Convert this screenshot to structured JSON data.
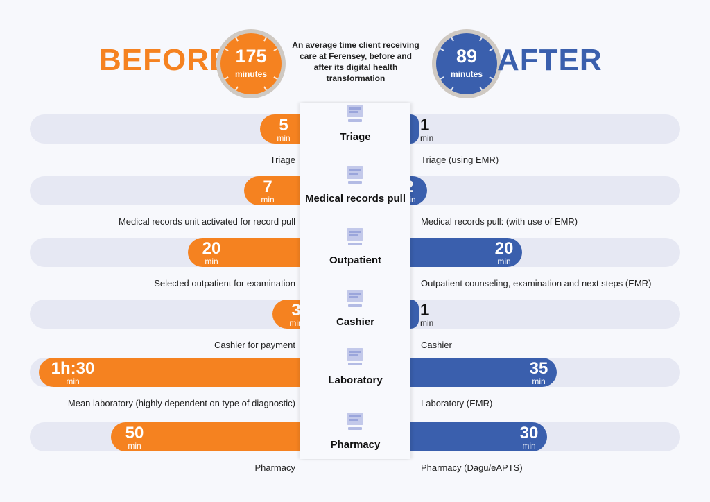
{
  "header": {
    "before_label": "BEFORE",
    "after_label": "AFTER",
    "before_total": "175",
    "after_total": "89",
    "total_unit": "minutes",
    "subtitle": "An average time client receiving care at Ferensey, before and after its digital health transformation"
  },
  "colors": {
    "before": "#f58220",
    "after": "#3a5fad",
    "track": "#e6e8f3"
  },
  "unit": "min",
  "chart_data": {
    "type": "bar",
    "title": "An average time client receiving care at Ferensey, before and after its digital health transformation",
    "categories": [
      "Triage",
      "Medical records pull",
      "Outpatient",
      "Cashier",
      "Laboratory",
      "Pharmacy"
    ],
    "series": [
      {
        "name": "BEFORE",
        "values": [
          5,
          7,
          20,
          3,
          90,
          50
        ],
        "display": [
          "5",
          "7",
          "20",
          "3",
          "1h:30",
          "50"
        ],
        "labels": [
          "Triage",
          "Medical records unit activated for record pull",
          "Selected outpatient for examination",
          "Cashier for payment",
          "Mean laboratory (highly dependent on type of diagnostic)",
          "Pharmacy"
        ]
      },
      {
        "name": "AFTER",
        "values": [
          1,
          2,
          20,
          1,
          35,
          30
        ],
        "display": [
          "1",
          "2",
          "20",
          "1",
          "35",
          "30"
        ],
        "labels": [
          "Triage (using EMR)",
          "Medical records pull: (with use of EMR)",
          "Outpatient counseling, examination and next steps (EMR)",
          "Cashier",
          "Laboratory (EMR)",
          "Pharmacy (Dagu/eAPTS)"
        ]
      }
    ],
    "totals": {
      "BEFORE": 175,
      "AFTER": 89
    },
    "ylabel": "minutes"
  },
  "icons": [
    "triage-icon",
    "computer-records-icon",
    "outpatient-icon",
    "cashier-icon",
    "laboratory-icon",
    "pharmacy-icon"
  ]
}
